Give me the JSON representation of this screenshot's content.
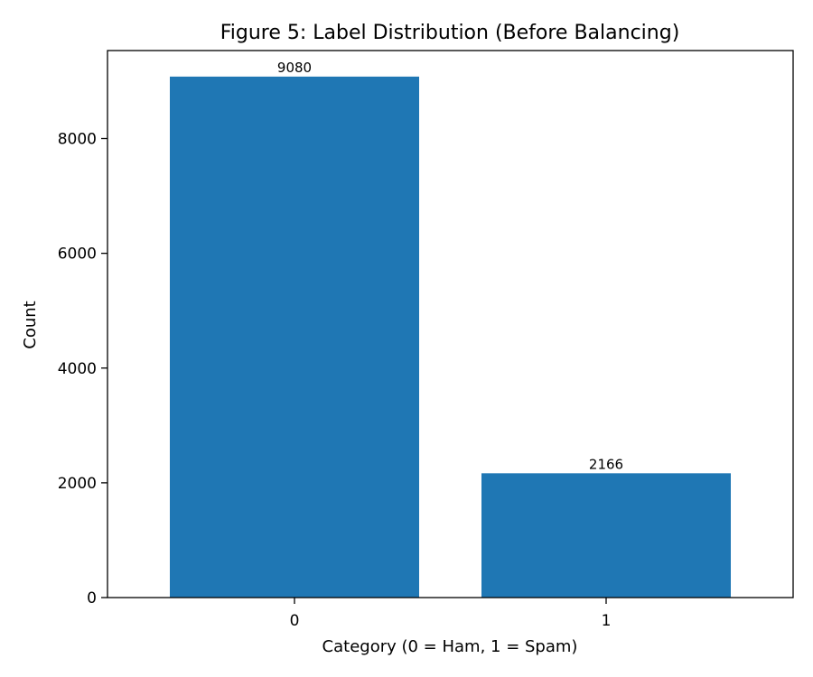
{
  "chart_data": {
    "type": "bar",
    "title": "Figure 5: Label Distribution (Before Balancing)",
    "xlabel": "Category (0 = Ham, 1 = Spam)",
    "ylabel": "Count",
    "categories": [
      "0",
      "1"
    ],
    "values": [
      9080,
      2166
    ],
    "data_labels": [
      "9080",
      "2166"
    ],
    "ylim": [
      0,
      9534
    ],
    "yticks": [
      0,
      2000,
      4000,
      6000,
      8000
    ],
    "ytick_labels": [
      "0",
      "2000",
      "4000",
      "6000",
      "8000"
    ],
    "grid": false,
    "legend": "none",
    "bar_color": "#1f77b4"
  }
}
